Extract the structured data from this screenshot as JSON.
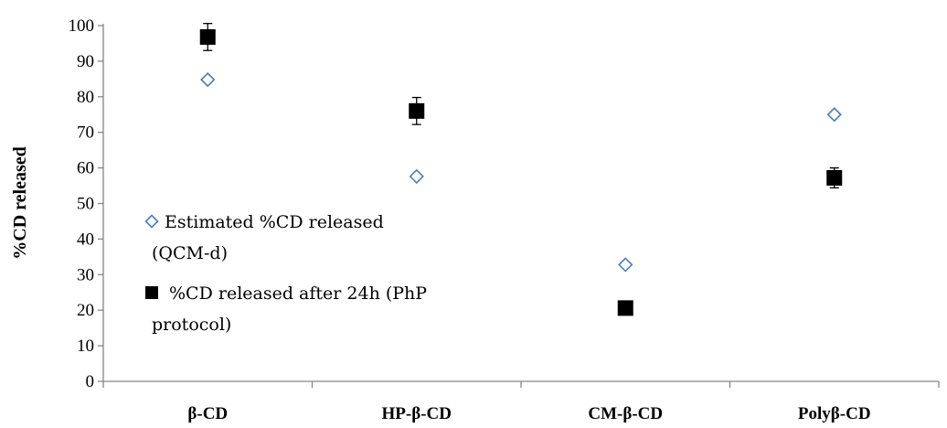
{
  "chart_data": {
    "type": "scatter",
    "title": "",
    "xlabel": "",
    "ylabel": "%CD released",
    "ylim": [
      0,
      100
    ],
    "yticks": [
      0,
      10,
      20,
      30,
      40,
      50,
      60,
      70,
      80,
      90,
      100
    ],
    "categories": [
      "β-CD",
      "HP-β-CD",
      "CM-β-CD",
      "Polyβ-CD"
    ],
    "grid": false,
    "legend_position": "left",
    "series": [
      {
        "name": "Estimated %CD released (QCM-d)",
        "legend_lines": [
          "Estimated %CD released",
          "(QCM-d)"
        ],
        "marker": "open-diamond",
        "color": "#4a7ebb",
        "values": [
          84.8,
          57.6,
          32.8,
          75.0
        ]
      },
      {
        "name": "%CD released after 24h (PhP protocol)",
        "legend_lines": [
          "%CD released after 24h (PhP",
          "protocol)"
        ],
        "marker": "filled-square",
        "color": "#000000",
        "values": [
          96.8,
          76.0,
          20.6,
          57.2
        ],
        "error": [
          3.8,
          3.8,
          0,
          2.8
        ]
      }
    ]
  }
}
